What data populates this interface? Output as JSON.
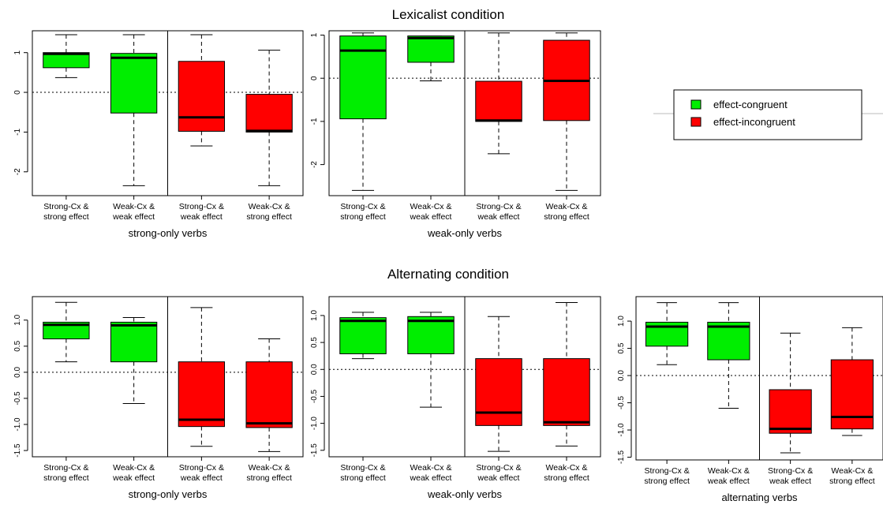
{
  "colors": {
    "effect-congruent": "#00ee00",
    "effect-incongruent": "#ff0000"
  },
  "sections": [
    {
      "title": "Lexicalist condition"
    },
    {
      "title": "Alternating condition"
    }
  ],
  "legend": {
    "placement": "right of top row",
    "entries": [
      {
        "label": "effect-congruent",
        "color_key": "effect-congruent"
      },
      {
        "label": "effect-incongruent",
        "color_key": "effect-incongruent"
      }
    ]
  },
  "chart_data": [
    {
      "type": "box",
      "section": 0,
      "xlabel": "strong-only verbs",
      "ylim": [
        -2.6,
        1.55
      ],
      "yticks": [
        1,
        0,
        -1,
        -2
      ],
      "ytick_labels": [
        "1",
        "0",
        "-1",
        "-2"
      ],
      "reference_line": 0,
      "separator_after": 2,
      "categories": [
        [
          "Strong-Cx &",
          "strong effect"
        ],
        [
          "Weak-Cx &",
          "weak effect"
        ],
        [
          "Strong-Cx &",
          "weak effect"
        ],
        [
          "Weak-Cx &",
          "strong effect"
        ]
      ],
      "boxes": [
        {
          "min": 0.37,
          "q1": 0.62,
          "median": 0.97,
          "q3": 1.0,
          "max": 1.45,
          "group": "effect-congruent"
        },
        {
          "min": -2.35,
          "q1": -0.52,
          "median": 0.87,
          "q3": 0.98,
          "max": 1.45,
          "group": "effect-congruent"
        },
        {
          "min": -1.35,
          "q1": -0.98,
          "median": -0.63,
          "q3": 0.78,
          "max": 1.45,
          "group": "effect-incongruent"
        },
        {
          "min": -2.35,
          "q1": -1.0,
          "median": -0.97,
          "q3": -0.05,
          "max": 1.06,
          "group": "effect-incongruent"
        }
      ]
    },
    {
      "type": "box",
      "section": 0,
      "xlabel": "weak-only verbs",
      "ylim": [
        -2.72,
        1.1
      ],
      "yticks": [
        1,
        0,
        -1,
        -2
      ],
      "ytick_labels": [
        "1",
        "0",
        "-1",
        "-2"
      ],
      "reference_line": 0,
      "separator_after": 2,
      "categories": [
        [
          "Strong-Cx &",
          "strong effect"
        ],
        [
          "Weak-Cx &",
          "weak effect"
        ],
        [
          "Strong-Cx &",
          "weak effect"
        ],
        [
          "Weak-Cx &",
          "strong effect"
        ]
      ],
      "boxes": [
        {
          "min": -2.6,
          "q1": -0.94,
          "median": 0.64,
          "q3": 0.98,
          "max": 1.05,
          "group": "effect-congruent"
        },
        {
          "min": -0.06,
          "q1": 0.37,
          "median": 0.93,
          "q3": 0.98,
          "max": 0.98,
          "group": "effect-congruent"
        },
        {
          "min": -1.75,
          "q1": -1.0,
          "median": -0.98,
          "q3": -0.07,
          "max": 1.05,
          "group": "effect-incongruent"
        },
        {
          "min": -2.6,
          "q1": -0.98,
          "median": -0.06,
          "q3": 0.88,
          "max": 1.05,
          "group": "effect-incongruent"
        }
      ]
    },
    {
      "type": "box",
      "section": 1,
      "xlabel": "strong-only verbs",
      "ylim": [
        -1.62,
        1.45
      ],
      "yticks": [
        1.0,
        0.5,
        0.0,
        -0.5,
        -1.0,
        -1.5
      ],
      "ytick_labels": [
        "1.0",
        "0.5",
        "0.0",
        "-0.5",
        "-1.0",
        "-1.5"
      ],
      "reference_line": 0,
      "separator_after": 2,
      "categories": [
        [
          "Strong-Cx &",
          "strong effect"
        ],
        [
          "Weak-Cx &",
          "weak effect"
        ],
        [
          "Strong-Cx &",
          "weak effect"
        ],
        [
          "Weak-Cx &",
          "strong effect"
        ]
      ],
      "boxes": [
        {
          "min": 0.2,
          "q1": 0.64,
          "median": 0.91,
          "q3": 0.96,
          "max": 1.34,
          "group": "effect-congruent"
        },
        {
          "min": -0.6,
          "q1": 0.2,
          "median": 0.9,
          "q3": 0.96,
          "max": 1.05,
          "group": "effect-congruent"
        },
        {
          "min": -1.42,
          "q1": -1.04,
          "median": -0.91,
          "q3": 0.2,
          "max": 1.24,
          "group": "effect-incongruent"
        },
        {
          "min": -1.52,
          "q1": -1.06,
          "median": -0.98,
          "q3": 0.2,
          "max": 0.64,
          "group": "effect-incongruent"
        }
      ]
    },
    {
      "type": "box",
      "section": 1,
      "xlabel": "weak-only verbs",
      "ylim": [
        -1.62,
        1.35
      ],
      "yticks": [
        1.0,
        0.5,
        0.0,
        -0.5,
        -1.0,
        -1.5
      ],
      "ytick_labels": [
        "1.0",
        "0.5",
        "0.0",
        "-0.5",
        "-1.0",
        "-1.5"
      ],
      "reference_line": 0,
      "separator_after": 2,
      "categories": [
        [
          "Strong-Cx &",
          "strong effect"
        ],
        [
          "Weak-Cx &",
          "weak effect"
        ],
        [
          "Strong-Cx &",
          "weak effect"
        ],
        [
          "Weak-Cx &",
          "strong effect"
        ]
      ],
      "boxes": [
        {
          "min": 0.2,
          "q1": 0.29,
          "median": 0.9,
          "q3": 0.96,
          "max": 1.06,
          "group": "effect-congruent"
        },
        {
          "min": -0.7,
          "q1": 0.29,
          "median": 0.9,
          "q3": 0.98,
          "max": 1.06,
          "group": "effect-congruent"
        },
        {
          "min": -1.52,
          "q1": -1.04,
          "median": -0.8,
          "q3": 0.2,
          "max": 0.98,
          "group": "effect-incongruent"
        },
        {
          "min": -1.42,
          "q1": -1.04,
          "median": -0.98,
          "q3": 0.2,
          "max": 1.24,
          "group": "effect-incongruent"
        }
      ]
    },
    {
      "type": "box",
      "section": 1,
      "xlabel": "alternating verbs",
      "ylim": [
        -1.55,
        1.45
      ],
      "yticks": [
        1.0,
        0.5,
        0.0,
        -0.5,
        -1.0,
        -1.5
      ],
      "ytick_labels": [
        "1.0",
        "0.5",
        "0.0",
        "-0.5",
        "-1.0",
        "-1.5"
      ],
      "reference_line": 0,
      "separator_after": 2,
      "categories": [
        [
          "Strong-Cx &",
          "strong effect"
        ],
        [
          "Weak-Cx &",
          "weak effect"
        ],
        [
          "Strong-Cx &",
          "weak effect"
        ],
        [
          "Weak-Cx &",
          "strong effect"
        ]
      ],
      "boxes": [
        {
          "min": 0.2,
          "q1": 0.54,
          "median": 0.9,
          "q3": 0.98,
          "max": 1.34,
          "group": "effect-congruent"
        },
        {
          "min": -0.6,
          "q1": 0.29,
          "median": 0.9,
          "q3": 0.98,
          "max": 1.34,
          "group": "effect-congruent"
        },
        {
          "min": -1.42,
          "q1": -1.06,
          "median": -0.98,
          "q3": -0.26,
          "max": 0.78,
          "group": "effect-incongruent"
        },
        {
          "min": -1.1,
          "q1": -0.98,
          "median": -0.76,
          "q3": 0.29,
          "max": 0.88,
          "group": "effect-incongruent"
        }
      ]
    }
  ]
}
